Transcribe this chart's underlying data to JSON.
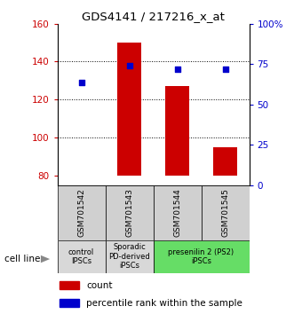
{
  "title": "GDS4141 / 217216_x_at",
  "samples": [
    "GSM701542",
    "GSM701543",
    "GSM701544",
    "GSM701545"
  ],
  "bar_values": [
    80,
    150,
    127,
    95
  ],
  "bar_bottom": 80,
  "dot_values": [
    129,
    138,
    136,
    136
  ],
  "ylim_left": [
    75,
    160
  ],
  "ylim_right": [
    0,
    100
  ],
  "yticks_left": [
    80,
    100,
    120,
    140,
    160
  ],
  "yticks_right": [
    0,
    25,
    50,
    75,
    100
  ],
  "ytick_labels_left": [
    "80",
    "100",
    "120",
    "140",
    "160"
  ],
  "ytick_labels_right": [
    "0",
    "25",
    "50",
    "75",
    "100%"
  ],
  "bar_color": "#cc0000",
  "dot_color": "#0000cc",
  "cell_groups": [
    {
      "label": "control\nIPSCs",
      "start": 0,
      "end": 1,
      "color": "#d8d8d8"
    },
    {
      "label": "Sporadic\nPD-derived\niPSCs",
      "start": 1,
      "end": 2,
      "color": "#d8d8d8"
    },
    {
      "label": "presenilin 2 (PS2)\niPSCs",
      "start": 2,
      "end": 4,
      "color": "#66dd66"
    }
  ],
  "legend_count_label": "count",
  "legend_pct_label": "percentile rank within the sample",
  "cell_line_label": "cell line",
  "tick_label_color_left": "#cc0000",
  "tick_label_color_right": "#0000cc",
  "sample_box_color": "#d0d0d0",
  "bar_width": 0.5
}
